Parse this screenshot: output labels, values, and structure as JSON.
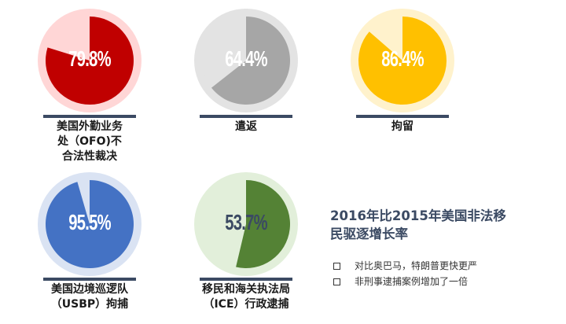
{
  "chart_data": [
    {
      "type": "pie",
      "value": 79.8,
      "label_text": "79.8%",
      "label": "美国外勤业务\n处（OFO)不\n合法性裁决",
      "color": "#c00000",
      "bg": "#ffd6d6",
      "text_dark": false
    },
    {
      "type": "pie",
      "value": 64.4,
      "label_text": "64.4%",
      "label": "遣返",
      "color": "#a6a6a6",
      "bg": "#e3e3e3",
      "text_dark": false
    },
    {
      "type": "pie",
      "value": 86.4,
      "label_text": "86.4%",
      "label": "拘留",
      "color": "#ffc000",
      "bg": "#fff2cc",
      "text_dark": false
    },
    {
      "type": "pie",
      "value": 95.5,
      "label_text": "95.5%",
      "label": "美国边境巡逻队\n（USBP）拘捕",
      "color": "#4472c4",
      "bg": "#dae3f3",
      "text_dark": false
    },
    {
      "type": "pie",
      "value": 53.7,
      "label_text": "53.7%",
      "label": "移民和海关执法局\n（ICE）行政逮捕",
      "color": "#548235",
      "bg": "#e2efda",
      "text_dark": true
    }
  ],
  "summary": {
    "headline": "2016年比2015年美国非法移民驱逐增长率",
    "bullets": [
      "对比奥巴马，特朗普更快更严",
      "非刑事逮捕案例增加了一倍"
    ],
    "accent": "#3b4a63"
  }
}
